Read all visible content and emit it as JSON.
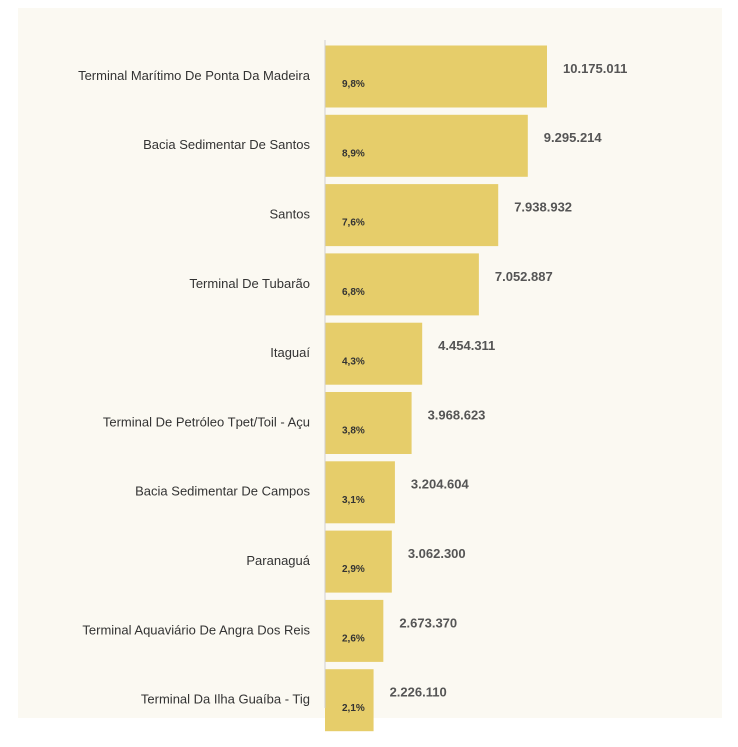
{
  "chart_data": {
    "type": "bar",
    "orientation": "horizontal",
    "color": "#e6cd6a",
    "categories": [
      "Terminal Marítimo De Ponta Da Madeira",
      "Bacia Sedimentar De Santos",
      "Santos",
      "Terminal De Tubarão",
      "Itaguaí",
      "Terminal De Petróleo Tpet/Toil - Açu",
      "Bacia Sedimentar De Campos",
      "Paranaguá",
      "Terminal Aquaviário De Angra Dos Reis",
      "Terminal Da Ilha Guaíba - Tig"
    ],
    "values": [
      10175011,
      9295214,
      7938932,
      7052887,
      4454311,
      3968623,
      3204604,
      3062300,
      2673370,
      2226110
    ],
    "value_labels": [
      "10.175.011",
      "9.295.214",
      "7.938.932",
      "7.052.887",
      "4.454.311",
      "3.968.623",
      "3.204.604",
      "3.062.300",
      "2.673.370",
      "2.226.110"
    ],
    "shares": [
      "9,8%",
      "8,9%",
      "7,6%",
      "6,8%",
      "4,3%",
      "3,8%",
      "3,1%",
      "2,9%",
      "2,6%",
      "2,1%"
    ]
  }
}
